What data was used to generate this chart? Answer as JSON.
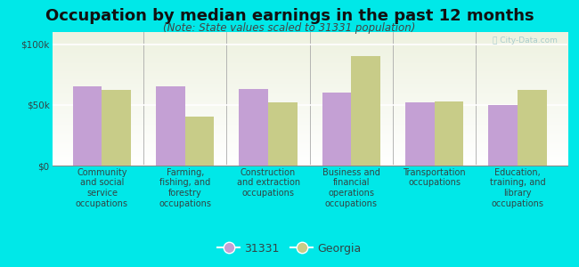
{
  "title": "Occupation by median earnings in the past 12 months",
  "subtitle": "(Note: State values scaled to 31331 population)",
  "categories": [
    "Community\nand social\nservice\noccupations",
    "Farming,\nfishing, and\nforestry\noccupations",
    "Construction\nand extraction\noccupations",
    "Business and\nfinancial\noperations\noccupations",
    "Transportation\noccupations",
    "Education,\ntraining, and\nlibrary\noccupations"
  ],
  "values_31331": [
    65000,
    65000,
    63000,
    60000,
    52000,
    50000
  ],
  "values_georgia": [
    62000,
    40000,
    52000,
    90000,
    53000,
    62000
  ],
  "color_31331": "#c4a0d4",
  "color_georgia": "#c8cc88",
  "background_color": "#00e8e8",
  "plot_bg": "#eef2e0",
  "yticks": [
    0,
    50000,
    100000
  ],
  "ytick_labels": [
    "$0",
    "$50k",
    "$100k"
  ],
  "ylim": [
    0,
    110000
  ],
  "legend_label_31331": "31331",
  "legend_label_georgia": "Georgia",
  "title_fontsize": 13,
  "subtitle_fontsize": 8.5,
  "tick_fontsize": 7.5,
  "xlabel_fontsize": 7,
  "legend_fontsize": 9,
  "bar_width": 0.35,
  "title_color": "#111111",
  "subtitle_color": "#444444",
  "label_color": "#334444",
  "watermark_color": "#aacccc"
}
